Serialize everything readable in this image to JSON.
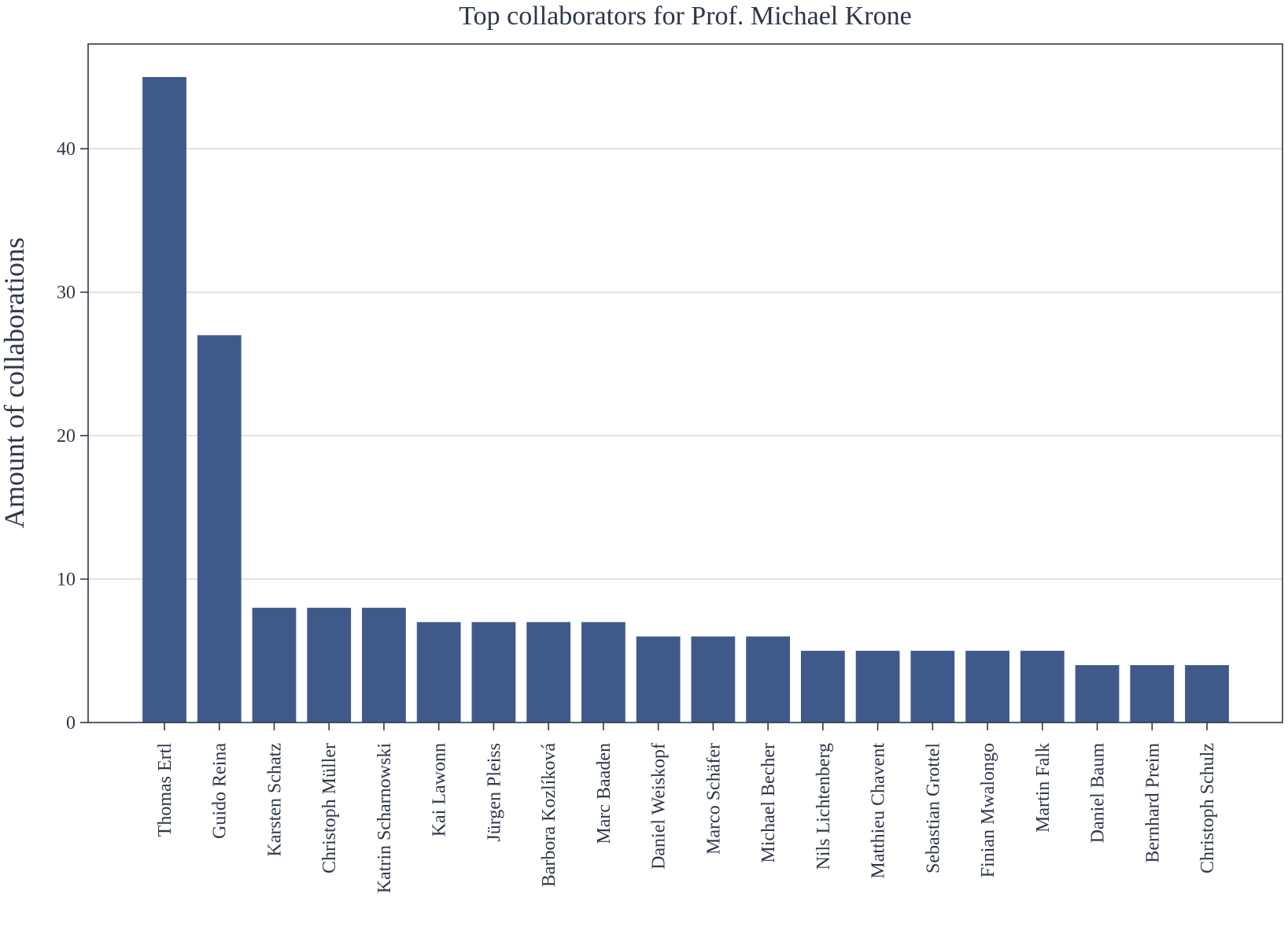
{
  "chart_data": {
    "type": "bar",
    "title": "Top collaborators for Prof. Michael Krone",
    "xlabel": "",
    "ylabel": "Amount of collaborations",
    "ylim": [
      0,
      47.3
    ],
    "yticks": [
      "0",
      "10",
      "20",
      "30",
      "40"
    ],
    "grid": "horizontal",
    "bar_color": "#3f5a8a",
    "categories": [
      "Thomas Ertl",
      "Guido Reina",
      "Karsten Schatz",
      "Christoph Müller",
      "Katrin Scharnowski",
      "Kai Lawonn",
      "Jürgen Pleiss",
      "Barbora Kozlíková",
      "Marc Baaden",
      "Daniel Weiskopf",
      "Marco Schäfer",
      "Michael Becher",
      "Nils Lichtenberg",
      "Matthieu Chavent",
      "Sebastian Grottel",
      "Finian Mwalongo",
      "Martin Falk",
      "Daniel Baum",
      "Bernhard Preim",
      "Christoph Schulz"
    ],
    "values": [
      45,
      27,
      8,
      8,
      8,
      7,
      7,
      7,
      7,
      6,
      6,
      6,
      5,
      5,
      5,
      5,
      5,
      4,
      4,
      4
    ]
  }
}
